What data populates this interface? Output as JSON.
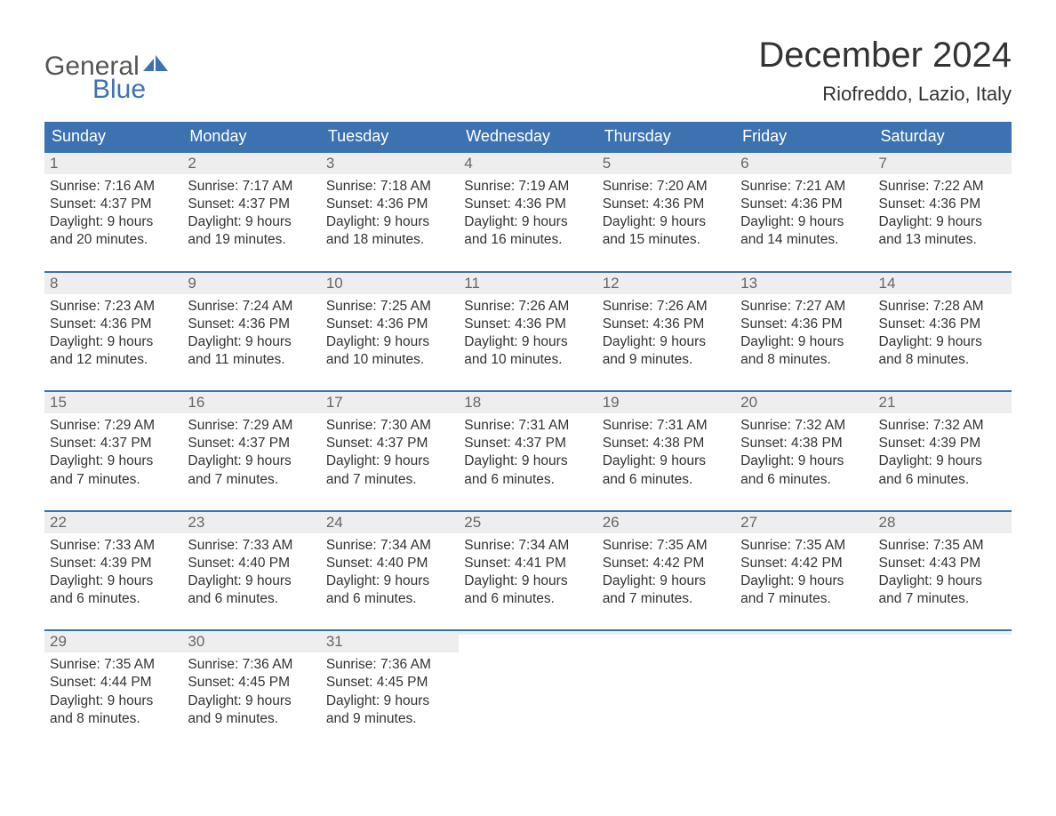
{
  "logo": {
    "text_dark": "General",
    "text_blue": "Blue",
    "sail_color": "#3d72b0"
  },
  "title": "December 2024",
  "location": "Riofreddo, Lazio, Italy",
  "colors": {
    "header_bg": "#3d72b0",
    "header_text": "#ffffff",
    "daynum_bg": "#eeeeee",
    "daynum_text": "#666666",
    "body_text": "#333333",
    "rule": "#3d72b0"
  },
  "weekdays": [
    "Sunday",
    "Monday",
    "Tuesday",
    "Wednesday",
    "Thursday",
    "Friday",
    "Saturday"
  ],
  "weeks": [
    [
      {
        "n": "1",
        "sunrise": "Sunrise: 7:16 AM",
        "sunset": "Sunset: 4:37 PM",
        "d1": "Daylight: 9 hours",
        "d2": "and 20 minutes."
      },
      {
        "n": "2",
        "sunrise": "Sunrise: 7:17 AM",
        "sunset": "Sunset: 4:37 PM",
        "d1": "Daylight: 9 hours",
        "d2": "and 19 minutes."
      },
      {
        "n": "3",
        "sunrise": "Sunrise: 7:18 AM",
        "sunset": "Sunset: 4:36 PM",
        "d1": "Daylight: 9 hours",
        "d2": "and 18 minutes."
      },
      {
        "n": "4",
        "sunrise": "Sunrise: 7:19 AM",
        "sunset": "Sunset: 4:36 PM",
        "d1": "Daylight: 9 hours",
        "d2": "and 16 minutes."
      },
      {
        "n": "5",
        "sunrise": "Sunrise: 7:20 AM",
        "sunset": "Sunset: 4:36 PM",
        "d1": "Daylight: 9 hours",
        "d2": "and 15 minutes."
      },
      {
        "n": "6",
        "sunrise": "Sunrise: 7:21 AM",
        "sunset": "Sunset: 4:36 PM",
        "d1": "Daylight: 9 hours",
        "d2": "and 14 minutes."
      },
      {
        "n": "7",
        "sunrise": "Sunrise: 7:22 AM",
        "sunset": "Sunset: 4:36 PM",
        "d1": "Daylight: 9 hours",
        "d2": "and 13 minutes."
      }
    ],
    [
      {
        "n": "8",
        "sunrise": "Sunrise: 7:23 AM",
        "sunset": "Sunset: 4:36 PM",
        "d1": "Daylight: 9 hours",
        "d2": "and 12 minutes."
      },
      {
        "n": "9",
        "sunrise": "Sunrise: 7:24 AM",
        "sunset": "Sunset: 4:36 PM",
        "d1": "Daylight: 9 hours",
        "d2": "and 11 minutes."
      },
      {
        "n": "10",
        "sunrise": "Sunrise: 7:25 AM",
        "sunset": "Sunset: 4:36 PM",
        "d1": "Daylight: 9 hours",
        "d2": "and 10 minutes."
      },
      {
        "n": "11",
        "sunrise": "Sunrise: 7:26 AM",
        "sunset": "Sunset: 4:36 PM",
        "d1": "Daylight: 9 hours",
        "d2": "and 10 minutes."
      },
      {
        "n": "12",
        "sunrise": "Sunrise: 7:26 AM",
        "sunset": "Sunset: 4:36 PM",
        "d1": "Daylight: 9 hours",
        "d2": "and 9 minutes."
      },
      {
        "n": "13",
        "sunrise": "Sunrise: 7:27 AM",
        "sunset": "Sunset: 4:36 PM",
        "d1": "Daylight: 9 hours",
        "d2": "and 8 minutes."
      },
      {
        "n": "14",
        "sunrise": "Sunrise: 7:28 AM",
        "sunset": "Sunset: 4:36 PM",
        "d1": "Daylight: 9 hours",
        "d2": "and 8 minutes."
      }
    ],
    [
      {
        "n": "15",
        "sunrise": "Sunrise: 7:29 AM",
        "sunset": "Sunset: 4:37 PM",
        "d1": "Daylight: 9 hours",
        "d2": "and 7 minutes."
      },
      {
        "n": "16",
        "sunrise": "Sunrise: 7:29 AM",
        "sunset": "Sunset: 4:37 PM",
        "d1": "Daylight: 9 hours",
        "d2": "and 7 minutes."
      },
      {
        "n": "17",
        "sunrise": "Sunrise: 7:30 AM",
        "sunset": "Sunset: 4:37 PM",
        "d1": "Daylight: 9 hours",
        "d2": "and 7 minutes."
      },
      {
        "n": "18",
        "sunrise": "Sunrise: 7:31 AM",
        "sunset": "Sunset: 4:37 PM",
        "d1": "Daylight: 9 hours",
        "d2": "and 6 minutes."
      },
      {
        "n": "19",
        "sunrise": "Sunrise: 7:31 AM",
        "sunset": "Sunset: 4:38 PM",
        "d1": "Daylight: 9 hours",
        "d2": "and 6 minutes."
      },
      {
        "n": "20",
        "sunrise": "Sunrise: 7:32 AM",
        "sunset": "Sunset: 4:38 PM",
        "d1": "Daylight: 9 hours",
        "d2": "and 6 minutes."
      },
      {
        "n": "21",
        "sunrise": "Sunrise: 7:32 AM",
        "sunset": "Sunset: 4:39 PM",
        "d1": "Daylight: 9 hours",
        "d2": "and 6 minutes."
      }
    ],
    [
      {
        "n": "22",
        "sunrise": "Sunrise: 7:33 AM",
        "sunset": "Sunset: 4:39 PM",
        "d1": "Daylight: 9 hours",
        "d2": "and 6 minutes."
      },
      {
        "n": "23",
        "sunrise": "Sunrise: 7:33 AM",
        "sunset": "Sunset: 4:40 PM",
        "d1": "Daylight: 9 hours",
        "d2": "and 6 minutes."
      },
      {
        "n": "24",
        "sunrise": "Sunrise: 7:34 AM",
        "sunset": "Sunset: 4:40 PM",
        "d1": "Daylight: 9 hours",
        "d2": "and 6 minutes."
      },
      {
        "n": "25",
        "sunrise": "Sunrise: 7:34 AM",
        "sunset": "Sunset: 4:41 PM",
        "d1": "Daylight: 9 hours",
        "d2": "and 6 minutes."
      },
      {
        "n": "26",
        "sunrise": "Sunrise: 7:35 AM",
        "sunset": "Sunset: 4:42 PM",
        "d1": "Daylight: 9 hours",
        "d2": "and 7 minutes."
      },
      {
        "n": "27",
        "sunrise": "Sunrise: 7:35 AM",
        "sunset": "Sunset: 4:42 PM",
        "d1": "Daylight: 9 hours",
        "d2": "and 7 minutes."
      },
      {
        "n": "28",
        "sunrise": "Sunrise: 7:35 AM",
        "sunset": "Sunset: 4:43 PM",
        "d1": "Daylight: 9 hours",
        "d2": "and 7 minutes."
      }
    ],
    [
      {
        "n": "29",
        "sunrise": "Sunrise: 7:35 AM",
        "sunset": "Sunset: 4:44 PM",
        "d1": "Daylight: 9 hours",
        "d2": "and 8 minutes."
      },
      {
        "n": "30",
        "sunrise": "Sunrise: 7:36 AM",
        "sunset": "Sunset: 4:45 PM",
        "d1": "Daylight: 9 hours",
        "d2": "and 9 minutes."
      },
      {
        "n": "31",
        "sunrise": "Sunrise: 7:36 AM",
        "sunset": "Sunset: 4:45 PM",
        "d1": "Daylight: 9 hours",
        "d2": "and 9 minutes."
      },
      {
        "empty": true
      },
      {
        "empty": true
      },
      {
        "empty": true
      },
      {
        "empty": true
      }
    ]
  ]
}
